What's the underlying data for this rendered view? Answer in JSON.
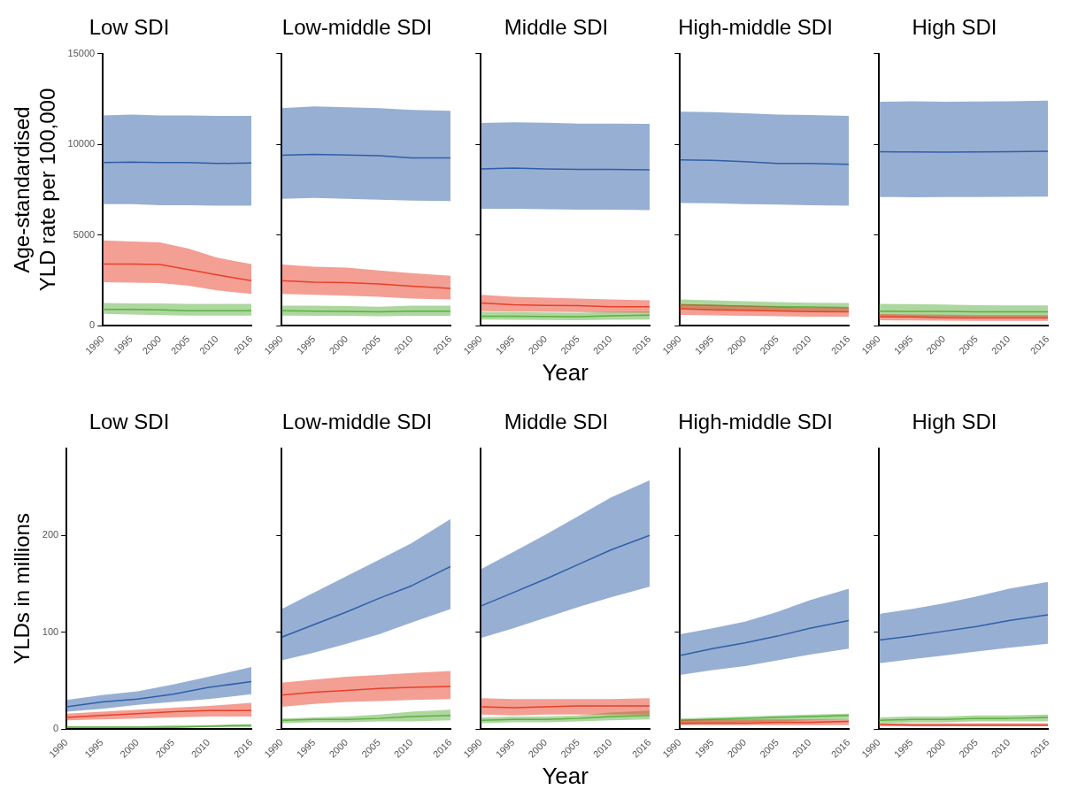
{
  "chart_data": [
    {
      "type": "line",
      "title": "Low SDI",
      "ylabel": "Age-standardised YLD rate per 100,000",
      "x": [
        1990,
        1995,
        2000,
        2005,
        2010,
        2016
      ],
      "xlim": [
        1990,
        2016
      ],
      "xticks": [
        1990,
        1995,
        2000,
        2005,
        2010,
        2016
      ],
      "ylim": [
        0,
        15000
      ],
      "yticks": [
        0,
        5000,
        10000,
        15000
      ],
      "series": [
        {
          "color": "#2f5fa8",
          "values": [
            9000,
            9020,
            9000,
            9000,
            8950,
            8980
          ],
          "lower": [
            6700,
            6700,
            6650,
            6650,
            6620,
            6620
          ],
          "upper": [
            11600,
            11650,
            11600,
            11600,
            11580,
            11580
          ]
        },
        {
          "color": "#5cb040",
          "values": [
            900,
            900,
            870,
            830,
            830,
            820
          ],
          "lower": [
            650,
            620,
            580,
            560,
            560,
            560
          ],
          "upper": [
            1250,
            1230,
            1230,
            1200,
            1200,
            1200
          ]
        },
        {
          "color": "#e8402a",
          "values": [
            3400,
            3400,
            3370,
            3100,
            2800,
            2480
          ],
          "lower": [
            2400,
            2380,
            2350,
            2200,
            1950,
            1750
          ],
          "upper": [
            4700,
            4650,
            4600,
            4250,
            3750,
            3400
          ]
        }
      ]
    },
    {
      "type": "line",
      "title": "Low-middle SDI",
      "x": [
        1990,
        1995,
        2000,
        2005,
        2010,
        2016
      ],
      "xlim": [
        1990,
        2016
      ],
      "xticks": [
        1990,
        1995,
        2000,
        2005,
        2010,
        2016
      ],
      "ylim": [
        0,
        15000
      ],
      "yticks": [
        0,
        5000,
        10000,
        15000
      ],
      "tick_labels": "x",
      "series": [
        {
          "color": "#2f5fa8",
          "values": [
            9400,
            9450,
            9420,
            9380,
            9250,
            9250
          ],
          "lower": [
            7000,
            7050,
            7000,
            6950,
            6900,
            6880
          ],
          "upper": [
            12000,
            12100,
            12050,
            12000,
            11900,
            11850
          ]
        },
        {
          "color": "#5cb040",
          "values": [
            820,
            800,
            790,
            760,
            800,
            800
          ],
          "lower": [
            560,
            550,
            540,
            520,
            540,
            540
          ],
          "upper": [
            1110,
            1100,
            1080,
            1050,
            1100,
            1100
          ]
        },
        {
          "color": "#e8402a",
          "values": [
            2480,
            2400,
            2380,
            2300,
            2180,
            2060
          ],
          "lower": [
            1750,
            1700,
            1650,
            1600,
            1500,
            1450
          ],
          "upper": [
            3380,
            3250,
            3200,
            3050,
            2900,
            2750
          ]
        }
      ]
    },
    {
      "type": "line",
      "title": "Middle SDI",
      "xlabel": "Year",
      "x": [
        1990,
        1995,
        2000,
        2005,
        2010,
        2016
      ],
      "xlim": [
        1990,
        2016
      ],
      "xticks": [
        1990,
        1995,
        2000,
        2005,
        2010,
        2016
      ],
      "ylim": [
        0,
        15000
      ],
      "yticks": [
        0,
        5000,
        10000,
        15000
      ],
      "tick_labels": "x",
      "series": [
        {
          "color": "#2f5fa8",
          "values": [
            8650,
            8700,
            8650,
            8620,
            8620,
            8600
          ],
          "lower": [
            6450,
            6450,
            6430,
            6400,
            6400,
            6380
          ],
          "upper": [
            11180,
            11220,
            11200,
            11150,
            11150,
            11130
          ]
        },
        {
          "color": "#5cb040",
          "values": [
            520,
            520,
            510,
            500,
            550,
            580
          ],
          "lower": [
            340,
            330,
            310,
            300,
            330,
            340
          ],
          "upper": [
            760,
            750,
            730,
            720,
            760,
            780
          ]
        },
        {
          "color": "#e8402a",
          "values": [
            1250,
            1150,
            1120,
            1100,
            1050,
            1050
          ],
          "lower": [
            800,
            780,
            760,
            750,
            730,
            720
          ],
          "upper": [
            1700,
            1600,
            1550,
            1500,
            1450,
            1400
          ]
        }
      ]
    },
    {
      "type": "line",
      "title": "High-middle SDI",
      "x": [
        1990,
        1995,
        2000,
        2005,
        2010,
        2016
      ],
      "xlim": [
        1990,
        2016
      ],
      "xticks": [
        1990,
        1995,
        2000,
        2005,
        2010,
        2016
      ],
      "ylim": [
        0,
        15000
      ],
      "yticks": [
        0,
        5000,
        10000,
        15000
      ],
      "tick_labels": "x",
      "series": [
        {
          "color": "#2f5fa8",
          "values": [
            9150,
            9120,
            9050,
            8950,
            8950,
            8900
          ],
          "lower": [
            6770,
            6750,
            6700,
            6680,
            6650,
            6620
          ],
          "upper": [
            11800,
            11780,
            11720,
            11650,
            11620,
            11580
          ]
        },
        {
          "color": "#5cb040",
          "values": [
            1150,
            1120,
            1080,
            1050,
            1030,
            1000
          ],
          "lower": [
            900,
            880,
            850,
            820,
            800,
            790
          ],
          "upper": [
            1450,
            1400,
            1350,
            1300,
            1270,
            1250
          ]
        },
        {
          "color": "#e8402a",
          "values": [
            930,
            880,
            850,
            810,
            780,
            770
          ],
          "lower": [
            590,
            570,
            550,
            520,
            500,
            500
          ],
          "upper": [
            1190,
            1150,
            1100,
            1050,
            1000,
            980
          ]
        }
      ]
    },
    {
      "type": "line",
      "title": "High SDI",
      "x": [
        1990,
        1995,
        2000,
        2005,
        2010,
        2016
      ],
      "xlim": [
        1990,
        2016
      ],
      "xticks": [
        1990,
        1995,
        2000,
        2005,
        2010,
        2016
      ],
      "ylim": [
        0,
        15000
      ],
      "yticks": [
        0,
        5000,
        10000,
        15000
      ],
      "tick_labels": "x",
      "series": [
        {
          "color": "#2f5fa8",
          "values": [
            9600,
            9580,
            9570,
            9580,
            9600,
            9620
          ],
          "lower": [
            7100,
            7090,
            7100,
            7100,
            7110,
            7120
          ],
          "upper": [
            12350,
            12380,
            12360,
            12370,
            12380,
            12420
          ]
        },
        {
          "color": "#5cb040",
          "values": [
            800,
            790,
            790,
            770,
            760,
            760
          ],
          "lower": [
            500,
            500,
            490,
            480,
            480,
            480
          ],
          "upper": [
            1200,
            1190,
            1170,
            1130,
            1120,
            1120
          ]
        },
        {
          "color": "#e8402a",
          "values": [
            500,
            480,
            450,
            440,
            440,
            440
          ],
          "lower": [
            300,
            290,
            280,
            270,
            270,
            270
          ],
          "upper": [
            640,
            620,
            600,
            580,
            580,
            580
          ]
        }
      ]
    },
    {
      "type": "line",
      "title": "Low SDI",
      "ylabel": "YLDs in millions",
      "x": [
        1990,
        1995,
        2000,
        2005,
        2010,
        2016
      ],
      "xlim": [
        1990,
        2016
      ],
      "xticks": [
        1990,
        1995,
        2000,
        2005,
        2010,
        2016
      ],
      "ylim": [
        0,
        290
      ],
      "yticks": [
        0,
        100,
        200
      ],
      "series": [
        {
          "color": "#2f5fa8",
          "values": [
            23,
            28,
            31,
            36,
            43,
            49
          ],
          "lower": [
            18,
            21,
            25,
            28,
            31,
            36
          ],
          "upper": [
            30,
            35,
            39,
            46,
            54,
            64
          ]
        },
        {
          "color": "#5cb040",
          "values": [
            2,
            2,
            2,
            2,
            3,
            4
          ],
          "lower": [
            1,
            1,
            1,
            1,
            2,
            2
          ],
          "upper": [
            3,
            3,
            3,
            4,
            4,
            5
          ]
        },
        {
          "color": "#e8402a",
          "values": [
            12,
            14,
            16,
            18,
            19,
            19
          ],
          "lower": [
            9,
            10,
            11,
            12,
            13,
            13
          ],
          "upper": [
            16,
            18,
            20,
            22,
            24,
            27
          ]
        }
      ]
    },
    {
      "type": "line",
      "title": "Low-middle SDI",
      "x": [
        1990,
        1995,
        2000,
        2005,
        2010,
        2016
      ],
      "xlim": [
        1990,
        2016
      ],
      "xticks": [
        1990,
        1995,
        2000,
        2005,
        2010,
        2016
      ],
      "ylim": [
        0,
        290
      ],
      "yticks": [
        0,
        100,
        200
      ],
      "tick_labels": "x",
      "series": [
        {
          "color": "#2f5fa8",
          "values": [
            95,
            108,
            121,
            135,
            148,
            168
          ],
          "lower": [
            71,
            79,
            88,
            98,
            110,
            124
          ],
          "upper": [
            124,
            141,
            158,
            175,
            192,
            217
          ]
        },
        {
          "color": "#5cb040",
          "values": [
            9,
            10,
            10,
            11,
            13,
            14
          ],
          "lower": [
            6,
            7,
            7,
            8,
            8,
            9
          ],
          "upper": [
            11,
            12,
            13,
            15,
            18,
            20
          ]
        },
        {
          "color": "#e8402a",
          "values": [
            35,
            38,
            40,
            42,
            43,
            44
          ],
          "lower": [
            23,
            26,
            28,
            29,
            30,
            31
          ],
          "upper": [
            48,
            51,
            54,
            56,
            58,
            60
          ]
        }
      ]
    },
    {
      "type": "line",
      "title": "Middle SDI",
      "xlabel": "Year",
      "x": [
        1990,
        1995,
        2000,
        2005,
        2010,
        2016
      ],
      "xlim": [
        1990,
        2016
      ],
      "xticks": [
        1990,
        1995,
        2000,
        2005,
        2010,
        2016
      ],
      "ylim": [
        0,
        290
      ],
      "yticks": [
        0,
        100,
        200
      ],
      "tick_labels": "x",
      "series": [
        {
          "color": "#2f5fa8",
          "values": [
            127,
            141,
            155,
            170,
            185,
            200
          ],
          "lower": [
            94,
            104,
            115,
            126,
            136,
            147
          ],
          "upper": [
            165,
            183,
            201,
            220,
            239,
            257
          ]
        },
        {
          "color": "#5cb040",
          "values": [
            9,
            10,
            10,
            11,
            13,
            14
          ],
          "lower": [
            6,
            7,
            7,
            8,
            9,
            10
          ],
          "upper": [
            12,
            13,
            13,
            14,
            17,
            19
          ]
        },
        {
          "color": "#e8402a",
          "values": [
            23,
            22,
            23,
            24,
            24,
            24
          ],
          "lower": [
            15,
            14,
            15,
            15,
            15,
            15
          ],
          "upper": [
            32,
            31,
            31,
            31,
            31,
            32
          ]
        }
      ]
    },
    {
      "type": "line",
      "title": "High-middle SDI",
      "x": [
        1990,
        1995,
        2000,
        2005,
        2010,
        2016
      ],
      "xlim": [
        1990,
        2016
      ],
      "xticks": [
        1990,
        1995,
        2000,
        2005,
        2010,
        2016
      ],
      "ylim": [
        0,
        290
      ],
      "yticks": [
        0,
        100,
        200
      ],
      "tick_labels": "x",
      "series": [
        {
          "color": "#2f5fa8",
          "values": [
            76,
            83,
            89,
            96,
            104,
            112
          ],
          "lower": [
            56,
            61,
            65,
            71,
            77,
            83
          ],
          "upper": [
            98,
            104,
            111,
            121,
            133,
            145
          ]
        },
        {
          "color": "#5cb040",
          "values": [
            9,
            10,
            11,
            12,
            13,
            14
          ],
          "lower": [
            5,
            6,
            7,
            8,
            9,
            10
          ],
          "upper": [
            11,
            12,
            13,
            14,
            15,
            16
          ]
        },
        {
          "color": "#e8402a",
          "values": [
            6,
            6,
            6,
            7,
            7,
            8
          ],
          "lower": [
            4,
            4,
            4,
            4,
            4,
            4
          ],
          "upper": [
            10,
            10,
            10,
            10,
            10,
            10
          ]
        }
      ]
    },
    {
      "type": "line",
      "title": "High SDI",
      "x": [
        1990,
        1995,
        2000,
        2005,
        2010,
        2016
      ],
      "xlim": [
        1990,
        2016
      ],
      "xticks": [
        1990,
        1995,
        2000,
        2005,
        2010,
        2016
      ],
      "ylim": [
        0,
        290
      ],
      "yticks": [
        0,
        100,
        200
      ],
      "tick_labels": "x",
      "series": [
        {
          "color": "#2f5fa8",
          "values": [
            92,
            96,
            101,
            106,
            112,
            118
          ],
          "lower": [
            68,
            72,
            76,
            80,
            84,
            88
          ],
          "upper": [
            119,
            124,
            130,
            137,
            145,
            152
          ]
        },
        {
          "color": "#5cb040",
          "values": [
            9,
            10,
            10,
            11,
            11,
            12
          ],
          "lower": [
            6,
            7,
            7,
            8,
            8,
            8
          ],
          "upper": [
            12,
            13,
            13,
            14,
            14,
            15
          ]
        },
        {
          "color": "#e8402a",
          "values": [
            5,
            4,
            4,
            4,
            4,
            4
          ],
          "lower": [
            3,
            3,
            3,
            3,
            3,
            3
          ],
          "upper": [
            6,
            6,
            6,
            6,
            6,
            6
          ]
        }
      ]
    }
  ]
}
